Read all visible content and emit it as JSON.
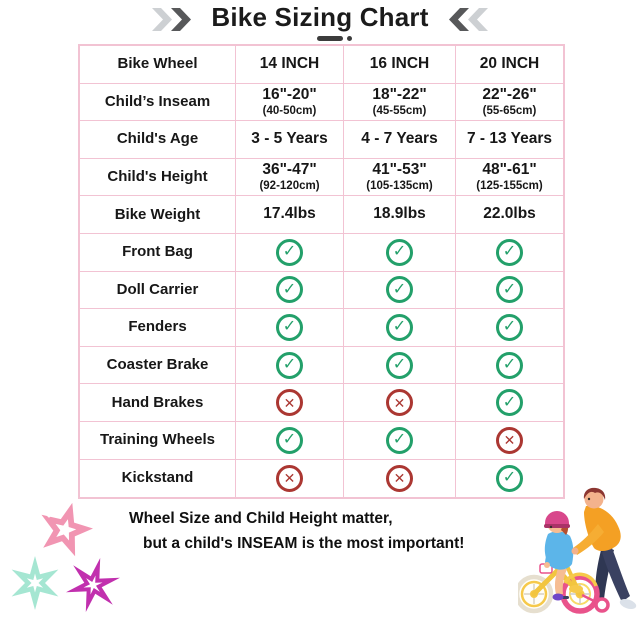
{
  "header": {
    "title": "Bike Sizing Chart",
    "left_icon": "double-chevron-right-icon",
    "right_icon": "double-chevron-left-icon"
  },
  "chart_data": {
    "type": "table",
    "title": "Bike Sizing Chart",
    "columns": [
      "Bike Wheel",
      "14 INCH",
      "16 INCH",
      "20 INCH"
    ],
    "header_row": {
      "label": "Bike Wheel",
      "values": [
        {
          "main": "14 INCH"
        },
        {
          "main": "16 INCH"
        },
        {
          "main": "20 INCH"
        }
      ]
    },
    "rows": [
      {
        "label": "Child’s Inseam",
        "values": [
          {
            "main": "16\"-20\"",
            "sub": "(40-50cm)"
          },
          {
            "main": "18\"-22\"",
            "sub": "(45-55cm)"
          },
          {
            "main": "22\"-26\"",
            "sub": "(55-65cm)"
          }
        ]
      },
      {
        "label": "Child's Age",
        "values": [
          {
            "main": "3 - 5 Years"
          },
          {
            "main": "4 - 7 Years"
          },
          {
            "main": "7 - 13 Years"
          }
        ]
      },
      {
        "label": "Child's Height",
        "values": [
          {
            "main": "36\"-47\"",
            "sub": "(92-120cm)"
          },
          {
            "main": "41\"-53\"",
            "sub": "(105-135cm)"
          },
          {
            "main": "48\"-61\"",
            "sub": "(125-155cm)"
          }
        ]
      },
      {
        "label": "Bike Weight",
        "values": [
          {
            "main": "17.4lbs"
          },
          {
            "main": "18.9lbs"
          },
          {
            "main": "22.0lbs"
          }
        ]
      },
      {
        "label": "Front Bag",
        "values": [
          {
            "icon": "check"
          },
          {
            "icon": "check"
          },
          {
            "icon": "check"
          }
        ]
      },
      {
        "label": "Doll Carrier",
        "values": [
          {
            "icon": "check"
          },
          {
            "icon": "check"
          },
          {
            "icon": "check"
          }
        ]
      },
      {
        "label": "Fenders",
        "values": [
          {
            "icon": "check"
          },
          {
            "icon": "check"
          },
          {
            "icon": "check"
          }
        ]
      },
      {
        "label": "Coaster Brake",
        "values": [
          {
            "icon": "check"
          },
          {
            "icon": "check"
          },
          {
            "icon": "check"
          }
        ]
      },
      {
        "label": "Hand Brakes",
        "values": [
          {
            "icon": "cross"
          },
          {
            "icon": "cross"
          },
          {
            "icon": "check"
          }
        ]
      },
      {
        "label": "Training Wheels",
        "values": [
          {
            "icon": "check"
          },
          {
            "icon": "check"
          },
          {
            "icon": "cross"
          }
        ]
      },
      {
        "label": "Kickstand",
        "values": [
          {
            "icon": "cross"
          },
          {
            "icon": "cross"
          },
          {
            "icon": "check"
          }
        ]
      }
    ]
  },
  "icons": {
    "check": {
      "glyph": "✓",
      "color": "#23a06a",
      "meaning": "included"
    },
    "cross": {
      "glyph": "✕",
      "color": "#ab3732",
      "meaning": "not included"
    }
  },
  "footer": {
    "line1": "Wheel Size and Child Height matter,",
    "line2": "but a child's INSEAM is the most important!"
  },
  "colors": {
    "table_border": "#f2c3d3",
    "check_green": "#23a06a",
    "cross_red": "#ab3732",
    "chevron_dark": "#57585a",
    "chevron_light": "#cdd0d3",
    "star_pink": "#f195b2",
    "star_teal": "#a5e6d2",
    "star_magenta": "#c130ae"
  },
  "decorations": {
    "stars": [
      "pink-star",
      "teal-star",
      "magenta-star"
    ],
    "illustration": "father-teaching-child-to-ride-bike"
  }
}
